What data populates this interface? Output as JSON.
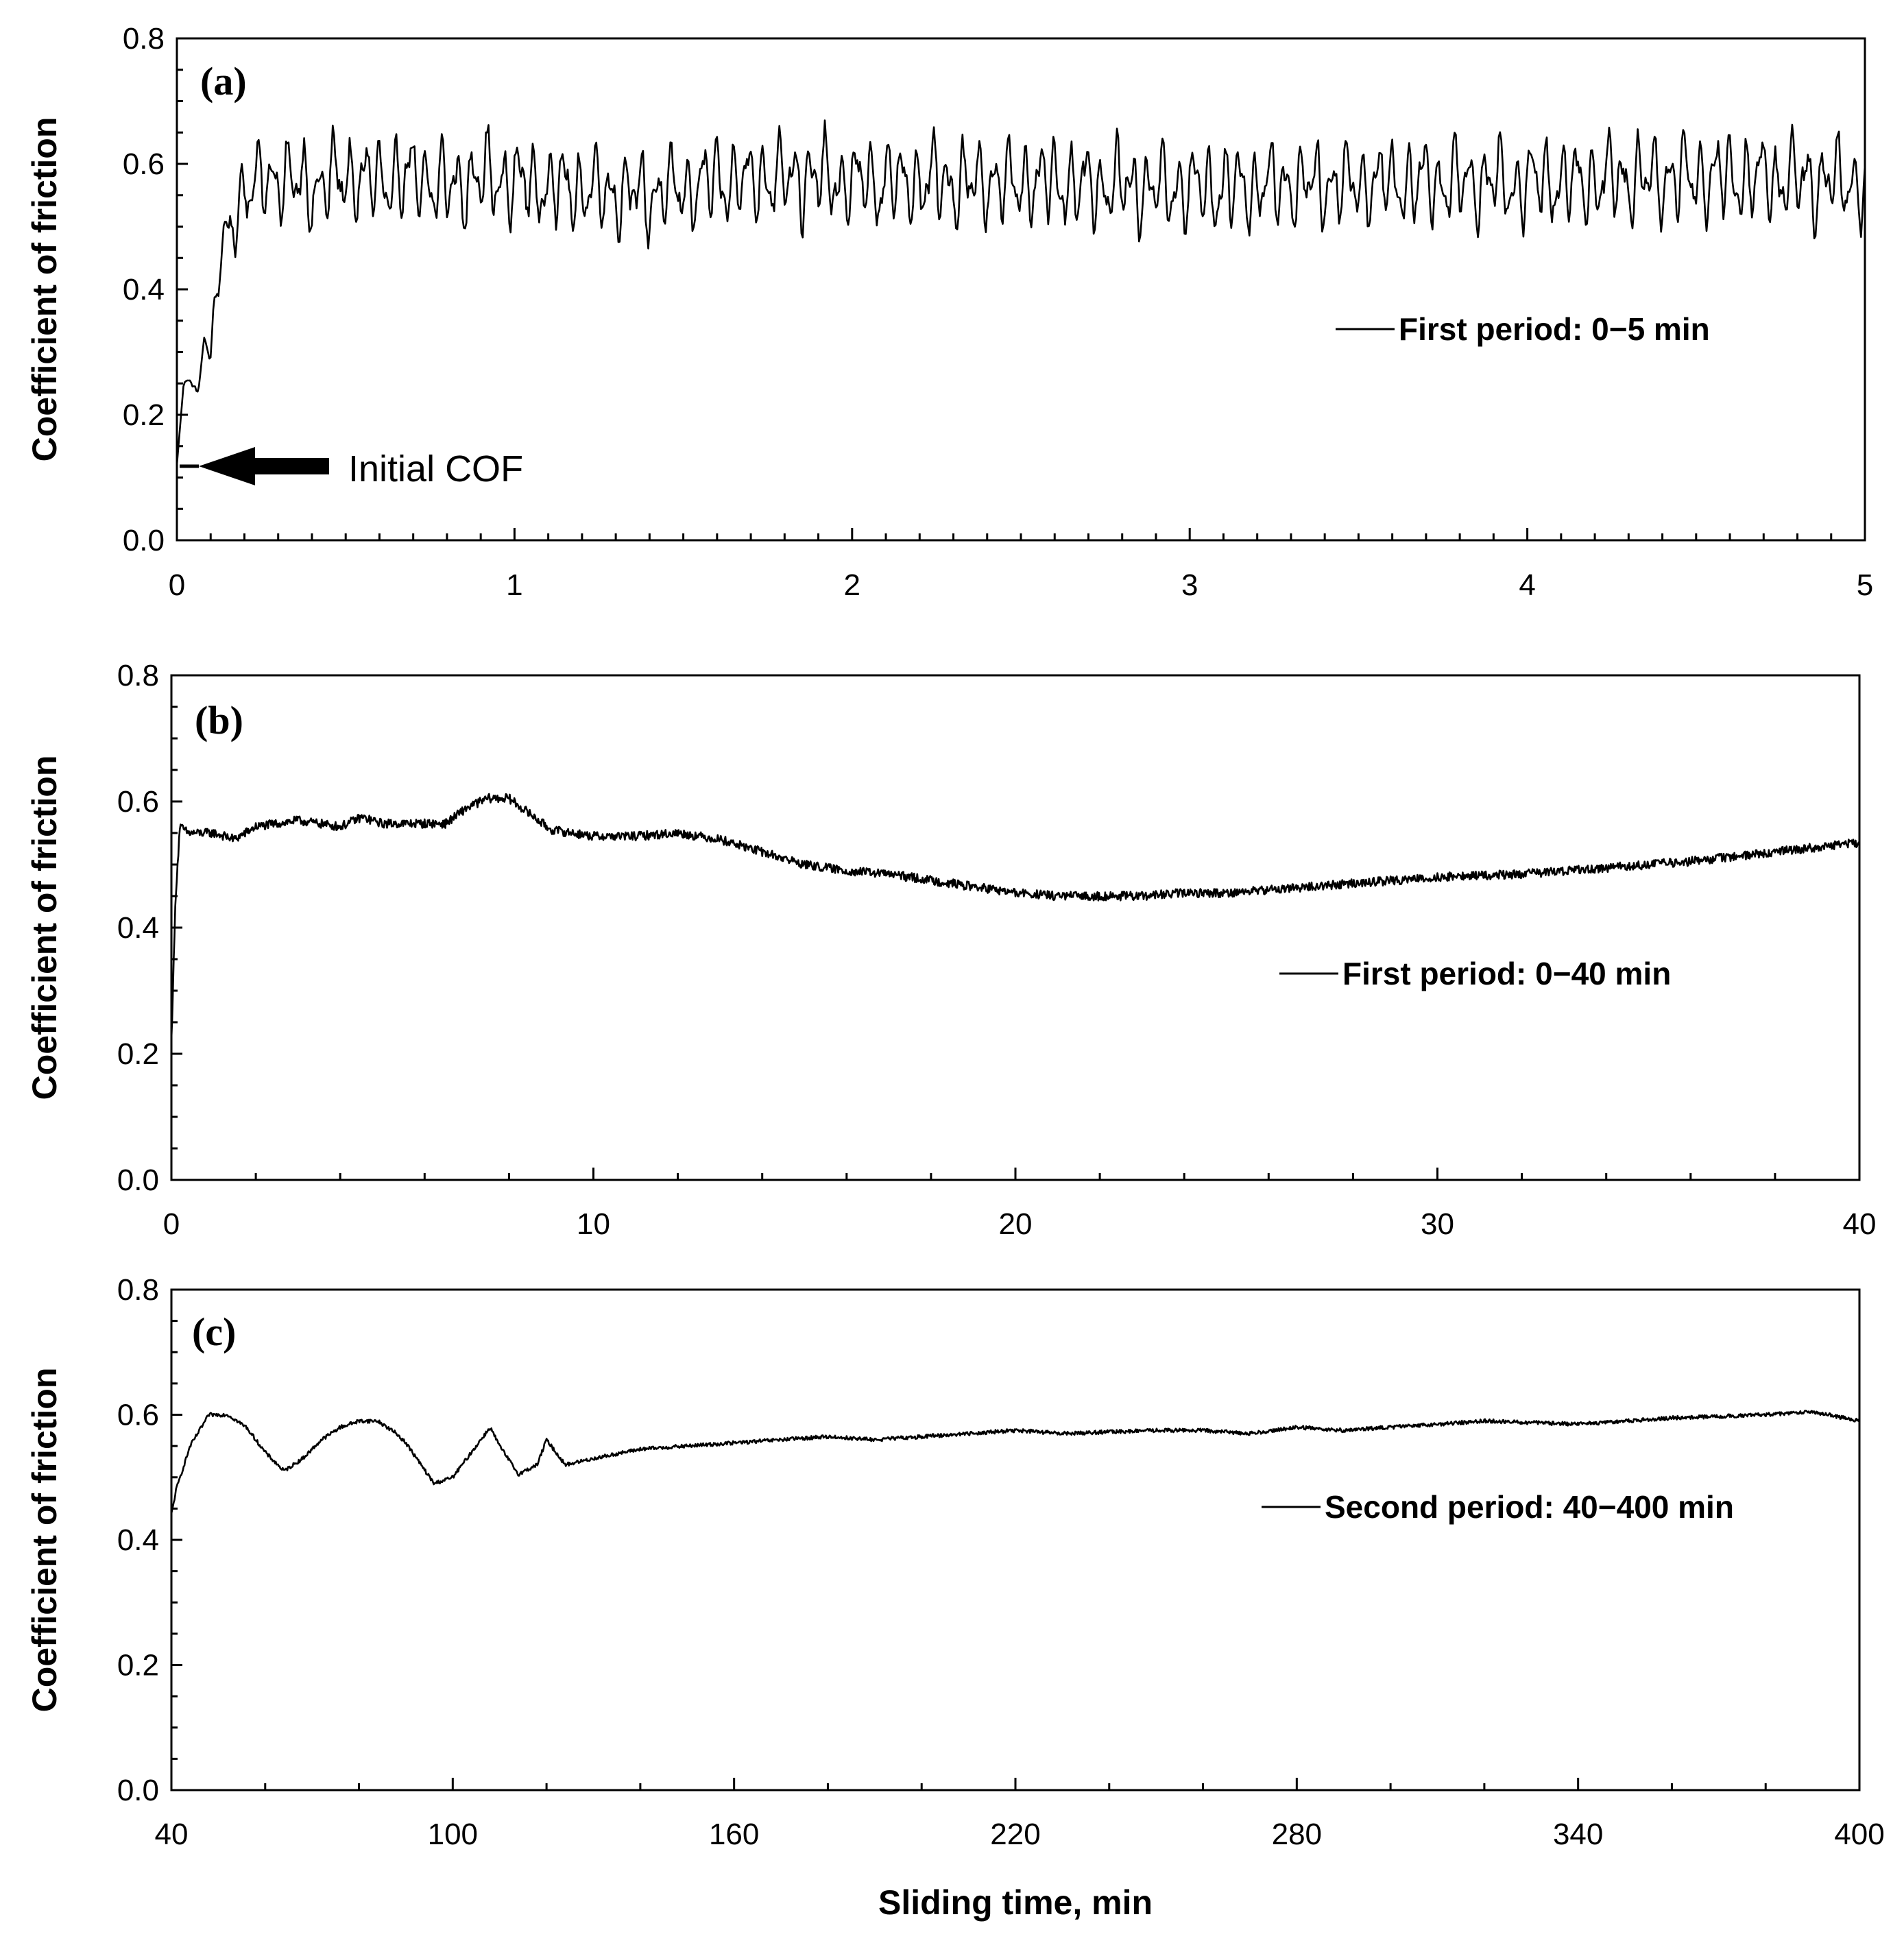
{
  "figure": {
    "xlabel_shared": "Sliding time, min",
    "colors": {
      "line": "#000000",
      "background": "#ffffff"
    }
  },
  "chart_data": [
    {
      "id": "a",
      "type": "line",
      "panel_label": "(a)",
      "ylabel": "Coefficient of friction",
      "xlim": [
        0,
        5
      ],
      "ylim": [
        0,
        0.8
      ],
      "xticks": [
        "0",
        "1",
        "2",
        "3",
        "4",
        "5"
      ],
      "yticks": [
        "0.0",
        "0.2",
        "0.4",
        "0.6",
        "0.8"
      ],
      "legend": "First period: 0−5 min",
      "annotation": {
        "text": "Initial COF",
        "x": 0,
        "y": 0.12
      },
      "series": [
        {
          "name": "First period: 0−5 min",
          "x": [
            0,
            0.02,
            0.04,
            0.06,
            0.08,
            0.1,
            0.12,
            0.14,
            0.16,
            0.18,
            0.2,
            0.3,
            0.4,
            0.5,
            0.6,
            0.7,
            0.8,
            0.9,
            1.0,
            1.2,
            1.4,
            1.6,
            1.8,
            2.0,
            2.5,
            3.0,
            3.5,
            4.0,
            4.5,
            5.0
          ],
          "y": [
            0.12,
            0.25,
            0.26,
            0.22,
            0.34,
            0.28,
            0.42,
            0.47,
            0.5,
            0.53,
            0.56,
            0.58,
            0.56,
            0.58,
            0.57,
            0.58,
            0.56,
            0.58,
            0.57,
            0.56,
            0.55,
            0.57,
            0.58,
            0.57,
            0.57,
            0.56,
            0.57,
            0.57,
            0.58,
            0.57
          ],
          "oscillation_amplitude": 0.06
        }
      ]
    },
    {
      "id": "b",
      "type": "line",
      "panel_label": "(b)",
      "ylabel": "Coefficient of friction",
      "xlim": [
        0,
        40
      ],
      "ylim": [
        0,
        0.8
      ],
      "xticks": [
        "0",
        "10",
        "20",
        "30",
        "40"
      ],
      "yticks": [
        "0.0",
        "0.2",
        "0.4",
        "0.6",
        "0.8"
      ],
      "legend": "First period: 0−40 min",
      "series": [
        {
          "name": "First period: 0−40 min",
          "x": [
            0,
            0.1,
            0.2,
            0.4,
            1,
            1.5,
            2,
            3,
            4,
            4.5,
            5,
            6,
            6.5,
            7,
            7.5,
            8,
            8.5,
            9,
            10,
            11,
            12,
            13,
            14,
            15,
            16,
            17,
            18,
            19,
            20,
            21,
            22,
            23,
            24,
            25,
            26,
            27,
            28,
            30,
            32,
            34,
            36,
            38,
            40
          ],
          "y": [
            0.22,
            0.45,
            0.56,
            0.55,
            0.55,
            0.54,
            0.56,
            0.57,
            0.56,
            0.575,
            0.565,
            0.565,
            0.565,
            0.59,
            0.605,
            0.605,
            0.58,
            0.555,
            0.545,
            0.545,
            0.55,
            0.54,
            0.52,
            0.5,
            0.49,
            0.485,
            0.475,
            0.465,
            0.455,
            0.45,
            0.45,
            0.45,
            0.455,
            0.455,
            0.46,
            0.465,
            0.47,
            0.48,
            0.485,
            0.495,
            0.505,
            0.52,
            0.535
          ],
          "oscillation_amplitude": 0.007
        }
      ]
    },
    {
      "id": "c",
      "type": "line",
      "panel_label": "(c)",
      "ylabel": "Coefficient of friction",
      "xlabel": "Sliding time, min",
      "xlim": [
        40,
        400
      ],
      "ylim": [
        0,
        0.8
      ],
      "xticks": [
        "40",
        "100",
        "160",
        "220",
        "280",
        "340",
        "400"
      ],
      "yticks": [
        "0.0",
        "0.2",
        "0.4",
        "0.6",
        "0.8"
      ],
      "legend": "Second period: 40−400 min",
      "series": [
        {
          "name": "Second period: 40−400 min",
          "x": [
            40,
            41,
            44,
            48,
            52,
            56,
            60,
            64,
            68,
            72,
            74,
            76,
            80,
            84,
            88,
            90,
            96,
            100,
            102,
            104,
            108,
            110,
            114,
            118,
            120,
            124,
            130,
            140,
            160,
            180,
            190,
            200,
            220,
            230,
            250,
            260,
            270,
            280,
            290,
            310,
            320,
            340,
            360,
            380,
            390,
            400
          ],
          "y": [
            0.44,
            0.48,
            0.55,
            0.6,
            0.6,
            0.58,
            0.54,
            0.51,
            0.53,
            0.56,
            0.57,
            0.58,
            0.59,
            0.59,
            0.57,
            0.555,
            0.49,
            0.5,
            0.52,
            0.54,
            0.58,
            0.55,
            0.505,
            0.52,
            0.56,
            0.52,
            0.53,
            0.545,
            0.555,
            0.565,
            0.56,
            0.565,
            0.575,
            0.57,
            0.575,
            0.575,
            0.57,
            0.58,
            0.575,
            0.585,
            0.59,
            0.585,
            0.595,
            0.6,
            0.605,
            0.59
          ],
          "oscillation_amplitude": 0.003
        }
      ]
    }
  ]
}
